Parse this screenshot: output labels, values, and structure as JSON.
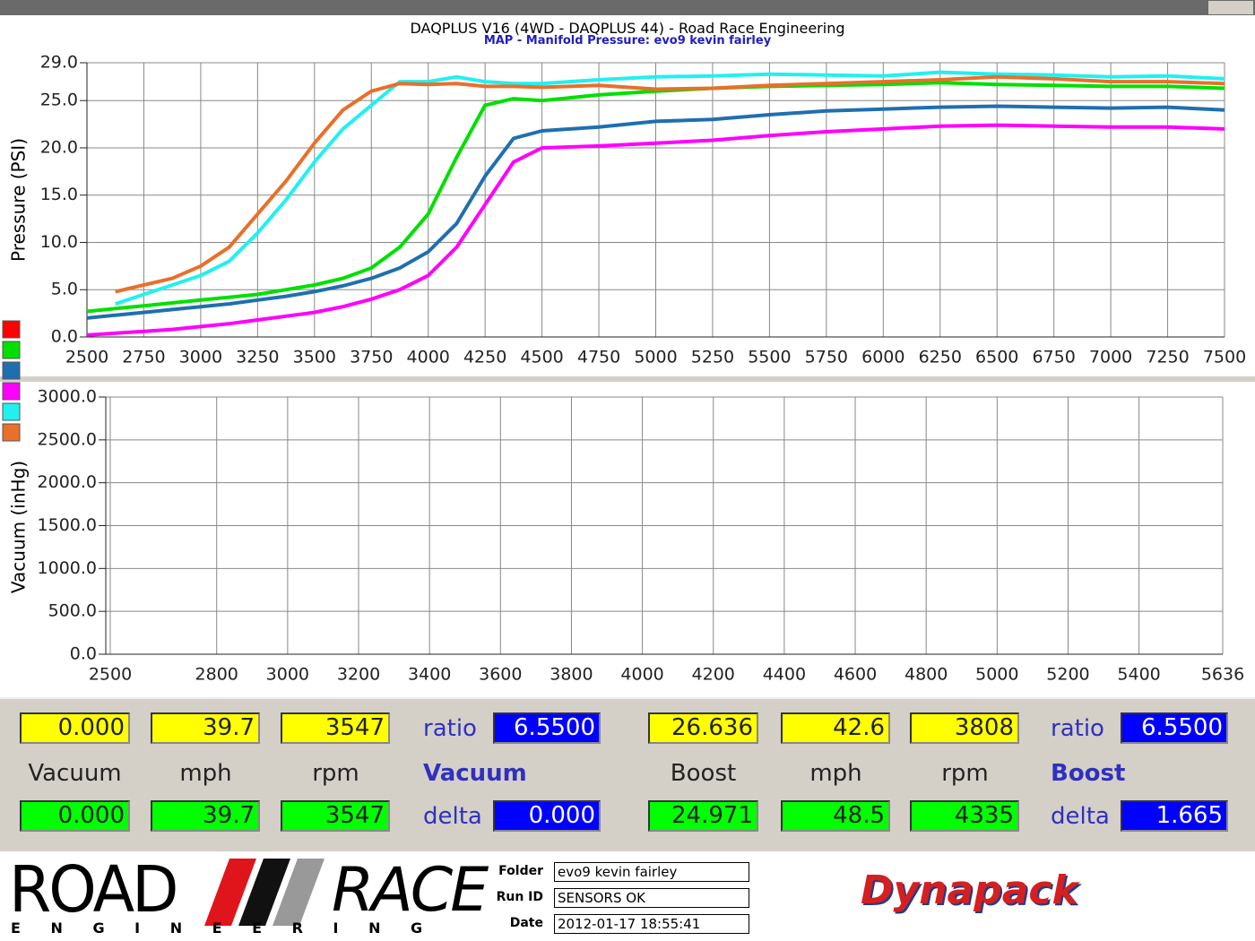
{
  "header": {
    "title": "DAQPLUS V16 (4WD - DAQPLUS 44) - Road Race Engineering",
    "subtitle": "MAP - Manifold Pressure: evo9 kevin fairley"
  },
  "chart_data": [
    {
      "type": "line",
      "ylabel": "Pressure (PSI)",
      "grid": true,
      "xlim": [
        2500,
        7500
      ],
      "xticks": [
        2500,
        2750,
        3000,
        3250,
        3500,
        3750,
        4000,
        4250,
        4500,
        4750,
        5000,
        5250,
        5500,
        5750,
        6000,
        6250,
        6500,
        6750,
        7000,
        7250,
        7500
      ],
      "ylim": [
        0,
        29
      ],
      "yticks": [
        {
          "value": 0,
          "label": "0.0"
        },
        {
          "value": 5,
          "label": "5.0"
        },
        {
          "value": 10,
          "label": "10.0"
        },
        {
          "value": 15,
          "label": "15.0"
        },
        {
          "value": 20,
          "label": "20.0"
        },
        {
          "value": 25,
          "label": "25.0"
        },
        {
          "value": 29,
          "label": "29.0"
        }
      ],
      "x": [
        2500,
        2625,
        2750,
        2875,
        3000,
        3125,
        3250,
        3375,
        3500,
        3625,
        3750,
        3875,
        4000,
        4125,
        4250,
        4375,
        4500,
        4750,
        5000,
        5250,
        5500,
        5750,
        6000,
        6250,
        6500,
        6750,
        7000,
        7250,
        7500
      ],
      "series": [
        {
          "color": "#ff0000",
          "values": [
            null,
            null,
            null,
            null,
            null,
            null,
            null,
            null,
            null,
            null,
            null,
            null,
            null,
            null,
            null,
            null,
            null,
            null,
            null,
            null,
            null,
            null,
            null,
            null,
            null,
            null,
            null,
            null,
            null
          ]
        },
        {
          "color": "#00e000",
          "values": [
            2.7,
            3.0,
            3.3,
            3.6,
            3.9,
            4.2,
            4.5,
            5.0,
            5.5,
            6.2,
            7.3,
            9.5,
            13,
            19,
            24.5,
            25.2,
            25,
            25.6,
            26,
            26.3,
            26.5,
            26.6,
            26.7,
            26.9,
            26.7,
            26.6,
            26.5,
            26.5,
            26.3
          ]
        },
        {
          "color": "#1f6fb0",
          "values": [
            2.0,
            2.3,
            2.6,
            2.9,
            3.2,
            3.5,
            3.9,
            4.3,
            4.8,
            5.4,
            6.2,
            7.3,
            9,
            12,
            17,
            21,
            21.8,
            22.2,
            22.8,
            23,
            23.5,
            23.9,
            24.1,
            24.3,
            24.4,
            24.3,
            24.2,
            24.3,
            24.0
          ]
        },
        {
          "color": "#ff00ff",
          "values": [
            0.2,
            0.4,
            0.6,
            0.8,
            1.1,
            1.4,
            1.8,
            2.2,
            2.6,
            3.2,
            4.0,
            5.0,
            6.5,
            9.5,
            14,
            18.5,
            20,
            20.2,
            20.5,
            20.8,
            21.3,
            21.7,
            22.0,
            22.3,
            22.4,
            22.3,
            22.2,
            22.2,
            22.0
          ]
        },
        {
          "color": "#22f0f0",
          "values": [
            null,
            3.5,
            4.5,
            5.5,
            6.5,
            8,
            11,
            14.5,
            18.5,
            22,
            24.5,
            27,
            27,
            27.5,
            27,
            26.8,
            26.8,
            27.2,
            27.5,
            27.6,
            27.8,
            27.7,
            27.6,
            28,
            27.8,
            27.7,
            27.5,
            27.6,
            27.3
          ]
        },
        {
          "color": "#e8702a",
          "values": [
            null,
            4.8,
            5.5,
            6.2,
            7.5,
            9.5,
            13,
            16.5,
            20.5,
            24,
            26,
            26.8,
            26.7,
            26.8,
            26.5,
            26.5,
            26.4,
            26.6,
            26.2,
            26.3,
            26.6,
            26.8,
            27.0,
            27.2,
            27.5,
            27.3,
            27.0,
            27.0,
            26.8
          ]
        }
      ]
    },
    {
      "type": "line",
      "ylabel": "Vacuum (inHg)",
      "grid": true,
      "xlim": [
        2500,
        5636
      ],
      "xticks": [
        2500,
        2800,
        3000,
        3200,
        3400,
        3600,
        3800,
        4000,
        4200,
        4400,
        4600,
        4800,
        5000,
        5200,
        5400,
        5636
      ],
      "ylim": [
        0,
        3000
      ],
      "yticks": [
        {
          "value": 0,
          "label": "0.0"
        },
        {
          "value": 500,
          "label": "500.0"
        },
        {
          "value": 1000,
          "label": "1000.0"
        },
        {
          "value": 1500,
          "label": "1500.0"
        },
        {
          "value": 2000,
          "label": "2000.0"
        },
        {
          "value": 2500,
          "label": "2500.0"
        },
        {
          "value": 3000,
          "label": "3000.0"
        }
      ],
      "x": [],
      "series": []
    }
  ],
  "panels": [
    {
      "top": [
        "0.000",
        "39.7",
        "3547",
        "ratio",
        "6.5500"
      ],
      "labels": [
        "Vacuum",
        "mph",
        "rpm",
        "Vacuum"
      ],
      "bottom": [
        "0.000",
        "39.7",
        "3547",
        "delta",
        "0.000"
      ]
    },
    {
      "top": [
        "26.636",
        "42.6",
        "3808",
        "ratio",
        "6.5500"
      ],
      "labels": [
        "Boost",
        "mph",
        "rpm",
        "Boost"
      ],
      "bottom": [
        "24.971",
        "48.5",
        "4335",
        "delta",
        "1.665"
      ]
    }
  ],
  "footer": {
    "logo": {
      "left": "ROAD",
      "right": "RACE",
      "sub": "E N G I N E E R I N G"
    },
    "fields": [
      {
        "label": "Folder",
        "value": "evo9 kevin fairley"
      },
      {
        "label": "Run ID",
        "value": "SENSORS OK"
      },
      {
        "label": "Date",
        "value": "2012-01-17 18:55:41"
      }
    ],
    "brand": "Dynapack"
  }
}
